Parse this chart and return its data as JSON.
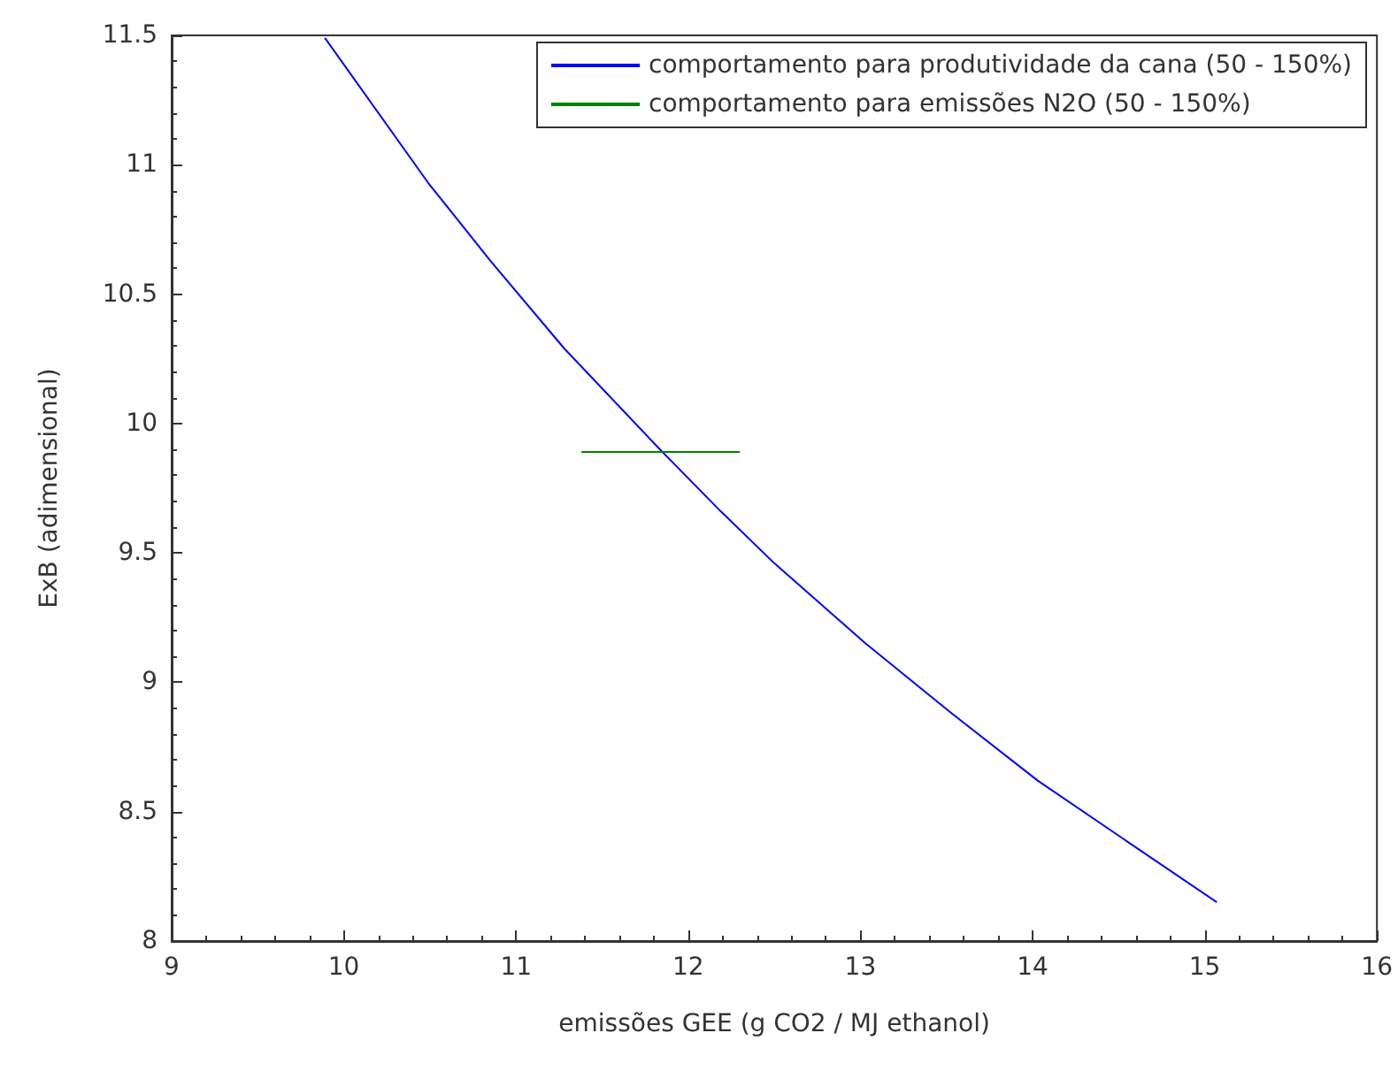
{
  "chart_data": {
    "type": "line",
    "xlabel": "emissões GEE (g CO2 / MJ ethanol)",
    "ylabel": "ExB (adimensional)",
    "xlim": [
      9,
      16
    ],
    "xticks": [
      9,
      10,
      11,
      12,
      13,
      14,
      15,
      16
    ],
    "ylim": [
      8,
      11.5
    ],
    "yticks": [
      8,
      8.5,
      9,
      9.5,
      10,
      10.5,
      11,
      11.5
    ],
    "grid": false,
    "legend": "top right",
    "marker": "none",
    "line_style": "solid",
    "series": [
      {
        "name": "comportamento para produtividade da cana (50 - 150%)",
        "color": "#0000ff",
        "x": [
          9.89,
          10.49,
          10.85,
          11.28,
          11.85,
          12.19,
          12.5,
          13.03,
          13.53,
          14.03,
          14.56,
          15.07
        ],
        "values": [
          11.49,
          10.93,
          10.63,
          10.29,
          9.89,
          9.66,
          9.46,
          9.15,
          8.88,
          8.62,
          8.38,
          8.15
        ]
      },
      {
        "name": "comportamento para emissões N2O (50 - 150%)",
        "color": "#008000",
        "x": [
          11.38,
          12.3
        ],
        "values": [
          9.89,
          9.89
        ]
      }
    ]
  }
}
